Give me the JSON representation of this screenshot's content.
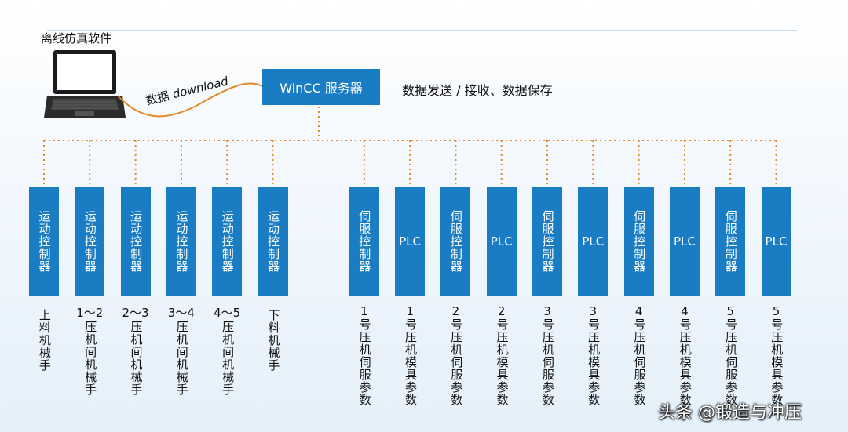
{
  "laptop": {
    "title": "离线仿真软件"
  },
  "server": {
    "label": "WinCC 服务器",
    "description": "数据发送 / 接收、数据保存"
  },
  "download": {
    "cn": "数据",
    "en": "download"
  },
  "colors": {
    "box": "#1a7dc4",
    "wire": "#e08a2a",
    "text_on_box": "#ffffff"
  },
  "devices": [
    {
      "box": "运动控制器",
      "vertical": true,
      "label_top": "",
      "label": "上料机械手"
    },
    {
      "box": "运动控制器",
      "vertical": true,
      "label_top": "1～2",
      "label": "压机间机械手"
    },
    {
      "box": "运动控制器",
      "vertical": true,
      "label_top": "2～3",
      "label": "压机间机械手"
    },
    {
      "box": "运动控制器",
      "vertical": true,
      "label_top": "3～4",
      "label": "压机间机械手"
    },
    {
      "box": "运动控制器",
      "vertical": true,
      "label_top": "4～5",
      "label": "压机间机械手"
    },
    {
      "box": "运动控制器",
      "vertical": true,
      "label_top": "",
      "label": "下料机械手"
    },
    {
      "box": "伺服控制器",
      "vertical": true,
      "label_top": "1",
      "label": "号压机伺服参数"
    },
    {
      "box": "PLC",
      "vertical": false,
      "label_top": "1",
      "label": "号压机模具参数"
    },
    {
      "box": "伺服控制器",
      "vertical": true,
      "label_top": "2",
      "label": "号压机伺服参数"
    },
    {
      "box": "PLC",
      "vertical": false,
      "label_top": "2",
      "label": "号压机模具参数"
    },
    {
      "box": "伺服控制器",
      "vertical": true,
      "label_top": "3",
      "label": "号压机伺服参数"
    },
    {
      "box": "PLC",
      "vertical": false,
      "label_top": "3",
      "label": "号压机模具参数"
    },
    {
      "box": "伺服控制器",
      "vertical": true,
      "label_top": "4",
      "label": "号压机伺服参数"
    },
    {
      "box": "PLC",
      "vertical": false,
      "label_top": "4",
      "label": "号压机模具参数"
    },
    {
      "box": "伺服控制器",
      "vertical": true,
      "label_top": "5",
      "label": "号压机伺服参数"
    },
    {
      "box": "PLC",
      "vertical": false,
      "label_top": "5",
      "label": "号压机模具参数"
    }
  ],
  "watermark": "头条 @锻造与冲压"
}
